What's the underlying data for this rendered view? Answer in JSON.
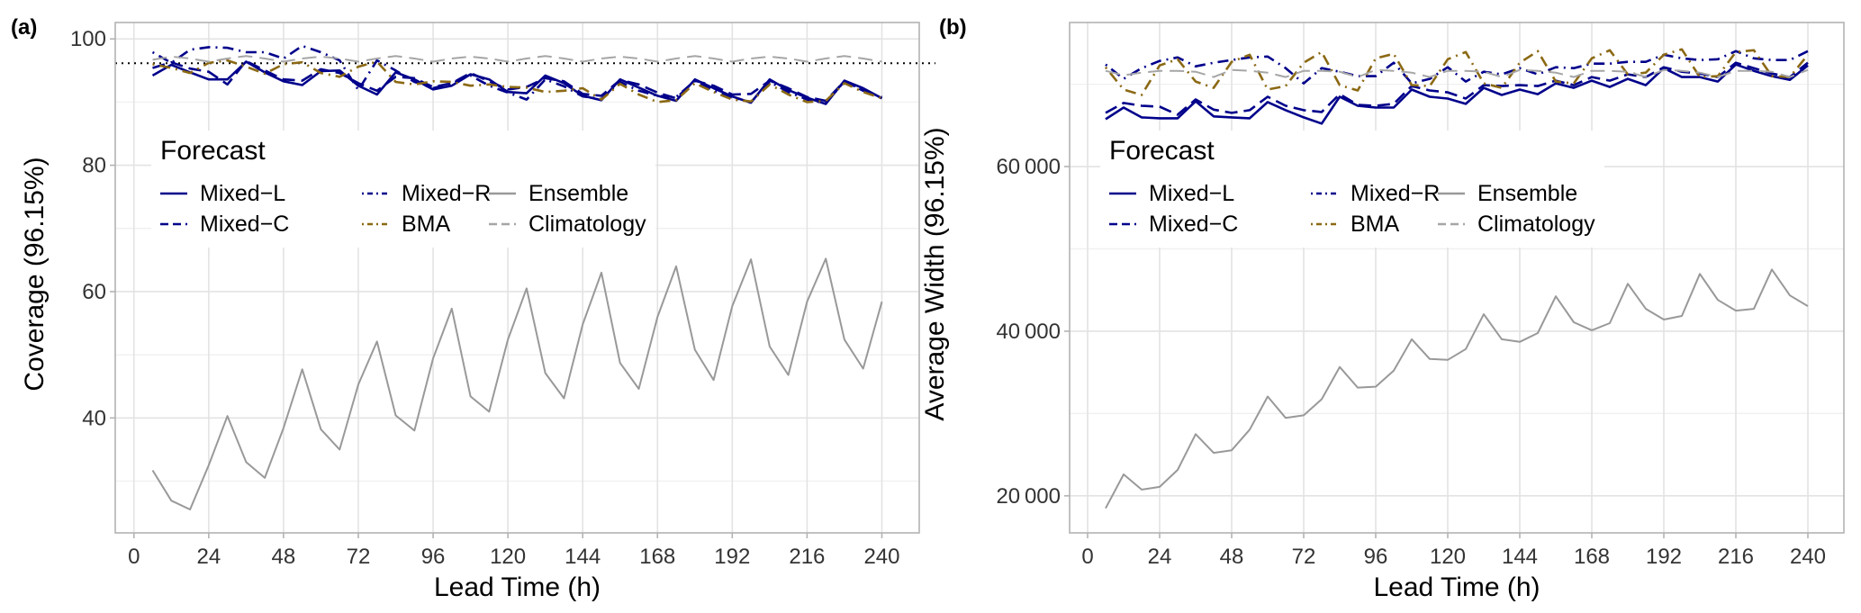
{
  "chart_data": [
    {
      "panel_tag": "(a)",
      "type": "line",
      "title": "",
      "xlabel": "Lead Time (h)",
      "ylabel": "Coverage (96.15%)",
      "xlim": [
        -6,
        252
      ],
      "ylim": [
        21.8,
        102.6
      ],
      "xticks": [
        0,
        24,
        48,
        72,
        96,
        120,
        144,
        168,
        192,
        216,
        240
      ],
      "xtick_labels": [
        "0",
        "24",
        "48",
        "72",
        "96",
        "120",
        "144",
        "168",
        "192",
        "216",
        "240"
      ],
      "yticks": [
        40,
        60,
        80,
        100
      ],
      "ytick_labels": [
        "40",
        "60",
        "80",
        "100"
      ],
      "grid": true,
      "reference_line": {
        "y": 96.15,
        "style": "dotted",
        "color": "#000000"
      },
      "legend": {
        "title": "Forecast",
        "placement": "top-left (inside plot)"
      },
      "x": [
        6,
        12,
        18,
        24,
        30,
        36,
        42,
        48,
        54,
        60,
        66,
        72,
        78,
        84,
        90,
        96,
        102,
        108,
        114,
        120,
        126,
        132,
        138,
        144,
        150,
        156,
        162,
        168,
        174,
        180,
        186,
        192,
        198,
        204,
        210,
        216,
        222,
        228,
        234,
        240
      ],
      "series": [
        {
          "name": "Mixed−L",
          "color": "#00008B",
          "dash": "solid",
          "values": [
            94.2,
            95.9,
            94.7,
            93.6,
            93.6,
            96.4,
            94.7,
            93.3,
            92.7,
            94.9,
            95.0,
            92.6,
            91.2,
            94.7,
            93.6,
            92.0,
            92.6,
            94.4,
            93.6,
            91.6,
            91.4,
            94.2,
            93.0,
            91.0,
            90.3,
            93.6,
            92.3,
            91.0,
            90.2,
            93.6,
            92.2,
            90.9,
            89.9,
            93.6,
            91.9,
            90.7,
            89.7,
            93.4,
            92.2,
            90.6
          ]
        },
        {
          "name": "Mixed−C",
          "color": "#00008B",
          "dash": "dashed",
          "values": [
            95.4,
            96.3,
            95.3,
            94.8,
            92.8,
            96.5,
            95.0,
            93.6,
            93.4,
            95.2,
            94.6,
            93.0,
            91.8,
            94.0,
            93.8,
            92.4,
            93.0,
            94.6,
            93.3,
            92.0,
            92.4,
            93.8,
            93.3,
            91.3,
            91.0,
            93.5,
            92.8,
            91.5,
            90.6,
            93.4,
            92.6,
            91.2,
            91.3,
            93.4,
            92.2,
            90.8,
            90.2,
            93.3,
            92.0,
            90.6
          ]
        },
        {
          "name": "Mixed−R",
          "color": "#00008B",
          "dash": "dotdash",
          "values": [
            97.9,
            96.2,
            98.3,
            98.7,
            98.6,
            97.9,
            97.9,
            96.9,
            98.9,
            97.9,
            96.6,
            91.9,
            96.6,
            95.0,
            93.2,
            92.2,
            93.0,
            94.2,
            92.6,
            91.5,
            90.4,
            93.6,
            92.5,
            90.9,
            90.5,
            93.2,
            91.8,
            91.0,
            90.8,
            93.4,
            91.8,
            90.7,
            90.0,
            93.2,
            91.6,
            90.4,
            89.8,
            93.3,
            91.8,
            90.8
          ]
        },
        {
          "name": "BMA",
          "color": "#8B6914",
          "dash": "dotdash",
          "values": [
            96.0,
            95.4,
            94.6,
            96.2,
            96.6,
            95.6,
            94.5,
            96.0,
            96.3,
            94.6,
            94.0,
            95.6,
            96.4,
            93.2,
            92.8,
            93.3,
            93.2,
            92.6,
            92.8,
            92.4,
            92.3,
            91.6,
            91.8,
            92.2,
            90.4,
            92.9,
            91.2,
            90.0,
            90.3,
            93.0,
            91.6,
            90.4,
            90.1,
            92.8,
            91.2,
            90.0,
            90.2,
            93.0,
            91.6,
            90.6
          ]
        },
        {
          "name": "Ensemble",
          "color": "#999999",
          "dash": "solid",
          "values": [
            31.7,
            26.9,
            25.5,
            32.5,
            40.3,
            33.0,
            30.5,
            38.4,
            47.7,
            38.2,
            35.0,
            45.3,
            52.1,
            40.4,
            38.0,
            49.4,
            57.3,
            43.4,
            41.0,
            52.4,
            60.5,
            47.1,
            43.1,
            54.8,
            63.0,
            48.7,
            44.6,
            56.0,
            64.0,
            50.8,
            46.0,
            57.7,
            65.1,
            51.3,
            46.8,
            58.4,
            65.2,
            52.4,
            47.8,
            58.4
          ]
        },
        {
          "name": "Climatology",
          "color": "#A6A6A6",
          "dash": "longdash",
          "values": [
            96.7,
            97.2,
            96.9,
            96.4,
            96.9,
            97.3,
            96.9,
            96.4,
            96.9,
            97.2,
            96.9,
            96.4,
            96.9,
            97.3,
            96.9,
            96.4,
            96.9,
            97.2,
            96.9,
            96.4,
            96.9,
            97.3,
            96.9,
            96.4,
            96.9,
            97.2,
            96.9,
            96.4,
            96.9,
            97.3,
            96.9,
            96.4,
            96.9,
            97.2,
            96.9,
            96.4,
            96.9,
            97.3,
            96.9,
            96.4
          ]
        }
      ]
    },
    {
      "panel_tag": "(b)",
      "type": "line",
      "title": "",
      "xlabel": "Lead Time (h)",
      "ylabel": "Average Width (96.15%)",
      "xlim": [
        -6,
        252
      ],
      "ylim": [
        15500,
        77500
      ],
      "xticks": [
        0,
        24,
        48,
        72,
        96,
        120,
        144,
        168,
        192,
        216,
        240
      ],
      "xtick_labels": [
        "0",
        "24",
        "48",
        "72",
        "96",
        "120",
        "144",
        "168",
        "192",
        "216",
        "240"
      ],
      "yticks": [
        20000,
        40000,
        60000
      ],
      "ytick_labels": [
        "20 000",
        "40 000",
        "60 000"
      ],
      "grid": true,
      "legend": {
        "title": "Forecast",
        "placement": "top-left (inside plot)"
      },
      "x": [
        6,
        12,
        18,
        24,
        30,
        36,
        42,
        48,
        54,
        60,
        66,
        72,
        78,
        84,
        90,
        96,
        102,
        108,
        114,
        120,
        126,
        132,
        138,
        144,
        150,
        156,
        162,
        168,
        174,
        180,
        186,
        192,
        198,
        204,
        210,
        216,
        222,
        228,
        234,
        240
      ],
      "series": [
        {
          "name": "Mixed−L",
          "color": "#00008B",
          "dash": "solid",
          "values": [
            65760,
            67170,
            65980,
            65870,
            65870,
            67935,
            66090,
            65980,
            65870,
            67830,
            66850,
            65980,
            65220,
            68480,
            67390,
            67170,
            67170,
            69350,
            68480,
            68260,
            67610,
            69565,
            68700,
            69350,
            68800,
            70110,
            69565,
            70435,
            69675,
            70650,
            69890,
            71960,
            70870,
            70870,
            70330,
            72390,
            71630,
            70980,
            70540,
            72280
          ]
        },
        {
          "name": "Mixed−C",
          "color": "#00008B",
          "dash": "dashed",
          "values": [
            66520,
            67720,
            67390,
            67280,
            66300,
            68150,
            66910,
            66520,
            66850,
            68480,
            67390,
            66850,
            66630,
            68800,
            67500,
            67390,
            67610,
            69780,
            69240,
            69020,
            68260,
            69890,
            69780,
            69890,
            69780,
            70435,
            69890,
            70870,
            70435,
            71200,
            70870,
            72065,
            71520,
            71300,
            70870,
            72610,
            71960,
            71300,
            70870,
            72610
          ]
        },
        {
          "name": "Mixed−R",
          "color": "#00008B",
          "dash": "dotdash",
          "values": [
            72390,
            70650,
            71960,
            72830,
            73260,
            72170,
            72610,
            72935,
            73260,
            73370,
            71960,
            70110,
            71960,
            71520,
            70980,
            70980,
            72610,
            70110,
            70650,
            72065,
            70330,
            71520,
            71200,
            71960,
            71200,
            72065,
            71960,
            72500,
            72500,
            72720,
            72720,
            73590,
            73150,
            72935,
            73040,
            74020,
            73150,
            72935,
            72935,
            74020
          ]
        },
        {
          "name": "BMA",
          "color": "#8B6914",
          "dash": "dotdash",
          "values": [
            72065,
            69350,
            68700,
            72280,
            73040,
            70330,
            69565,
            72720,
            73590,
            69350,
            69780,
            72610,
            73910,
            69890,
            69240,
            73150,
            73700,
            69890,
            69780,
            73040,
            73910,
            70110,
            69565,
            72610,
            74020,
            70330,
            70110,
            73150,
            74130,
            71200,
            71410,
            73590,
            74240,
            70870,
            70980,
            73910,
            74130,
            70980,
            70870,
            73590
          ]
        },
        {
          "name": "Ensemble",
          "color": "#999999",
          "dash": "solid",
          "values": [
            18480,
            22610,
            20760,
            21090,
            23150,
            27500,
            25220,
            25540,
            28040,
            32065,
            29460,
            29780,
            31740,
            35650,
            33150,
            33260,
            35220,
            39020,
            36630,
            36520,
            37830,
            42065,
            39020,
            38700,
            39780,
            44240,
            41090,
            40110,
            40980,
            45760,
            42720,
            41410,
            41850,
            46960,
            43800,
            42500,
            42720,
            47500,
            44350,
            43040
          ]
        },
        {
          "name": "Climatology",
          "color": "#A6A6A6",
          "dash": "longdash",
          "values": [
            71630,
            71090,
            71410,
            71630,
            71630,
            71520,
            70870,
            71740,
            71630,
            71410,
            70870,
            71630,
            71630,
            71520,
            70870,
            71740,
            71630,
            71410,
            70870,
            71630,
            71630,
            71520,
            70870,
            71740,
            71630,
            71410,
            70870,
            71630,
            71630,
            71520,
            70870,
            71740,
            71630,
            71410,
            70870,
            71630,
            71630,
            71520,
            70870,
            71740
          ]
        }
      ]
    }
  ],
  "legend_layout": {
    "title": "Forecast",
    "columns": [
      [
        "Mixed−L",
        "Mixed−C"
      ],
      [
        "Mixed−R",
        "BMA"
      ],
      [
        "Ensemble",
        "Climatology"
      ]
    ]
  }
}
